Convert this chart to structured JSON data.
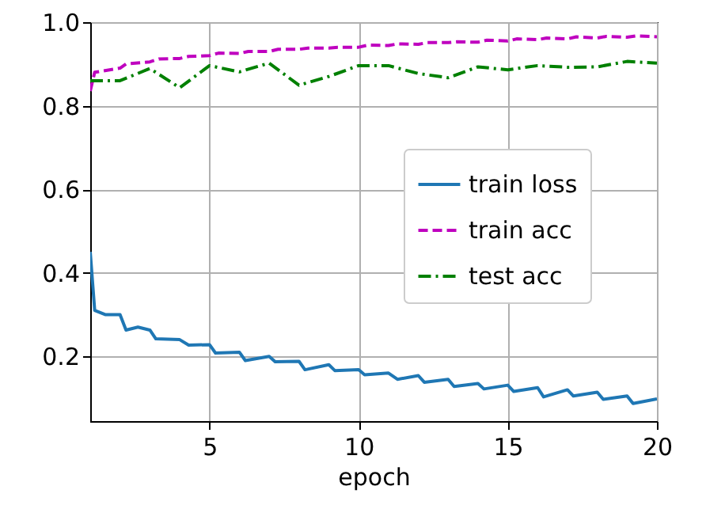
{
  "chart_data": {
    "type": "line",
    "xlabel": "epoch",
    "xlim": [
      1,
      20
    ],
    "xticks": [
      5,
      10,
      15,
      20
    ],
    "ylim": [
      0.045,
      1.0
    ],
    "yticks": [
      {
        "value": 0.2,
        "label": "0.2"
      },
      {
        "value": 0.4,
        "label": "0.4"
      },
      {
        "value": 0.6,
        "label": "0.6"
      },
      {
        "value": 0.8,
        "label": "0.8"
      },
      {
        "value": 1.0,
        "label": "1.0"
      }
    ],
    "grid": true,
    "legend": "right",
    "series": [
      {
        "name": "train loss",
        "color": "#1f77b4",
        "line_style": "solid",
        "x": [
          1,
          1.15,
          1.5,
          2,
          2.2,
          2.6,
          3,
          3.2,
          4,
          4.3,
          5,
          5.2,
          6,
          6.2,
          7,
          7.2,
          8,
          8.2,
          9,
          9.2,
          10,
          10.2,
          11,
          11.3,
          12,
          12.2,
          13,
          13.2,
          14,
          14.2,
          15,
          15.2,
          16,
          16.2,
          17,
          17.2,
          18,
          18.2,
          19,
          19.2,
          20
        ],
        "values": [
          0.45,
          0.31,
          0.3,
          0.3,
          0.263,
          0.27,
          0.263,
          0.242,
          0.24,
          0.227,
          0.228,
          0.208,
          0.21,
          0.19,
          0.2,
          0.187,
          0.188,
          0.168,
          0.18,
          0.166,
          0.168,
          0.156,
          0.16,
          0.145,
          0.154,
          0.138,
          0.145,
          0.128,
          0.135,
          0.122,
          0.131,
          0.116,
          0.125,
          0.103,
          0.12,
          0.105,
          0.114,
          0.097,
          0.105,
          0.087,
          0.098
        ]
      },
      {
        "name": "train acc",
        "color": "#bf00bf",
        "line_style": "dashed",
        "x": [
          1,
          1.15,
          2,
          2.2,
          3,
          3.3,
          4,
          4.3,
          5,
          5.3,
          6,
          6.3,
          7,
          7.3,
          8,
          8.3,
          9,
          9.3,
          10,
          10.3,
          11,
          11.3,
          12,
          12.3,
          13,
          13.3,
          14,
          14.3,
          15,
          15.3,
          16,
          16.3,
          17,
          17.3,
          18,
          18.3,
          19,
          19.3,
          20
        ],
        "values": [
          0.835,
          0.88,
          0.89,
          0.9,
          0.905,
          0.912,
          0.913,
          0.918,
          0.92,
          0.926,
          0.925,
          0.93,
          0.93,
          0.935,
          0.935,
          0.938,
          0.938,
          0.94,
          0.94,
          0.945,
          0.944,
          0.948,
          0.947,
          0.951,
          0.951,
          0.953,
          0.952,
          0.957,
          0.955,
          0.96,
          0.958,
          0.962,
          0.96,
          0.965,
          0.962,
          0.966,
          0.964,
          0.967,
          0.965
        ]
      },
      {
        "name": "test acc",
        "color": "#008000",
        "line_style": "dashdot",
        "x": [
          1,
          2,
          3,
          4,
          5,
          6,
          7,
          8,
          9,
          10,
          11,
          12,
          13,
          14,
          15,
          16,
          17,
          18,
          19,
          20
        ],
        "values": [
          0.86,
          0.86,
          0.889,
          0.843,
          0.896,
          0.881,
          0.902,
          0.849,
          0.87,
          0.896,
          0.896,
          0.877,
          0.867,
          0.893,
          0.886,
          0.896,
          0.892,
          0.893,
          0.906,
          0.902
        ]
      }
    ]
  }
}
